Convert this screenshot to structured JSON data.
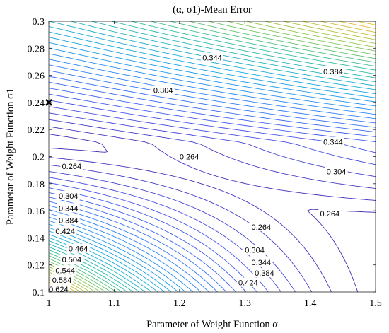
{
  "chart_data": {
    "type": "contour",
    "title": "(α, σ1)-Mean Error",
    "xlabel": "Parameter of Weight Function α",
    "ylabel": "Parametar of Weight Function σ1",
    "xlim": [
      1,
      1.5
    ],
    "ylim": [
      0.1,
      0.3
    ],
    "xticks": [
      "1",
      "1.1",
      "1.2",
      "1.3",
      "1.4",
      "1.5"
    ],
    "yticks": [
      "0.1",
      "0.12",
      "0.14",
      "0.16",
      "0.18",
      "0.2",
      "0.22",
      "0.24",
      "0.26",
      "0.28",
      "0.3"
    ],
    "grid": false,
    "colormap": "parula",
    "level_min": 0.244,
    "level_max": 0.644,
    "level_step": 0.01,
    "contour_labels": [
      {
        "text": "0.344",
        "x": 1.25,
        "y": 0.273
      },
      {
        "text": "0.384",
        "x": 1.435,
        "y": 0.263
      },
      {
        "text": "0.304",
        "x": 1.175,
        "y": 0.249
      },
      {
        "text": "0.344",
        "x": 1.435,
        "y": 0.211
      },
      {
        "text": "0.264",
        "x": 1.215,
        "y": 0.2
      },
      {
        "text": "0.264",
        "x": 1.035,
        "y": 0.193
      },
      {
        "text": "0.304",
        "x": 1.44,
        "y": 0.189
      },
      {
        "text": "0.304",
        "x": 1.03,
        "y": 0.171
      },
      {
        "text": "0.344",
        "x": 1.03,
        "y": 0.162
      },
      {
        "text": "0.384",
        "x": 1.03,
        "y": 0.153
      },
      {
        "text": "0.424",
        "x": 1.025,
        "y": 0.145
      },
      {
        "text": "0.264",
        "x": 1.43,
        "y": 0.158
      },
      {
        "text": "0.264",
        "x": 1.325,
        "y": 0.148
      },
      {
        "text": "0.464",
        "x": 1.045,
        "y": 0.132
      },
      {
        "text": "0.504",
        "x": 1.035,
        "y": 0.124
      },
      {
        "text": "0.544",
        "x": 1.025,
        "y": 0.116
      },
      {
        "text": "0.584",
        "x": 1.02,
        "y": 0.109
      },
      {
        "text": "0.624",
        "x": 1.015,
        "y": 0.102
      },
      {
        "text": "0.304",
        "x": 1.315,
        "y": 0.131
      },
      {
        "text": "0.344",
        "x": 1.325,
        "y": 0.122
      },
      {
        "text": "0.384",
        "x": 1.33,
        "y": 0.114
      },
      {
        "text": "0.424",
        "x": 1.305,
        "y": 0.107
      }
    ],
    "marker": {
      "symbol": "x",
      "x": 1,
      "y": 0.24,
      "color": "#000000"
    }
  }
}
